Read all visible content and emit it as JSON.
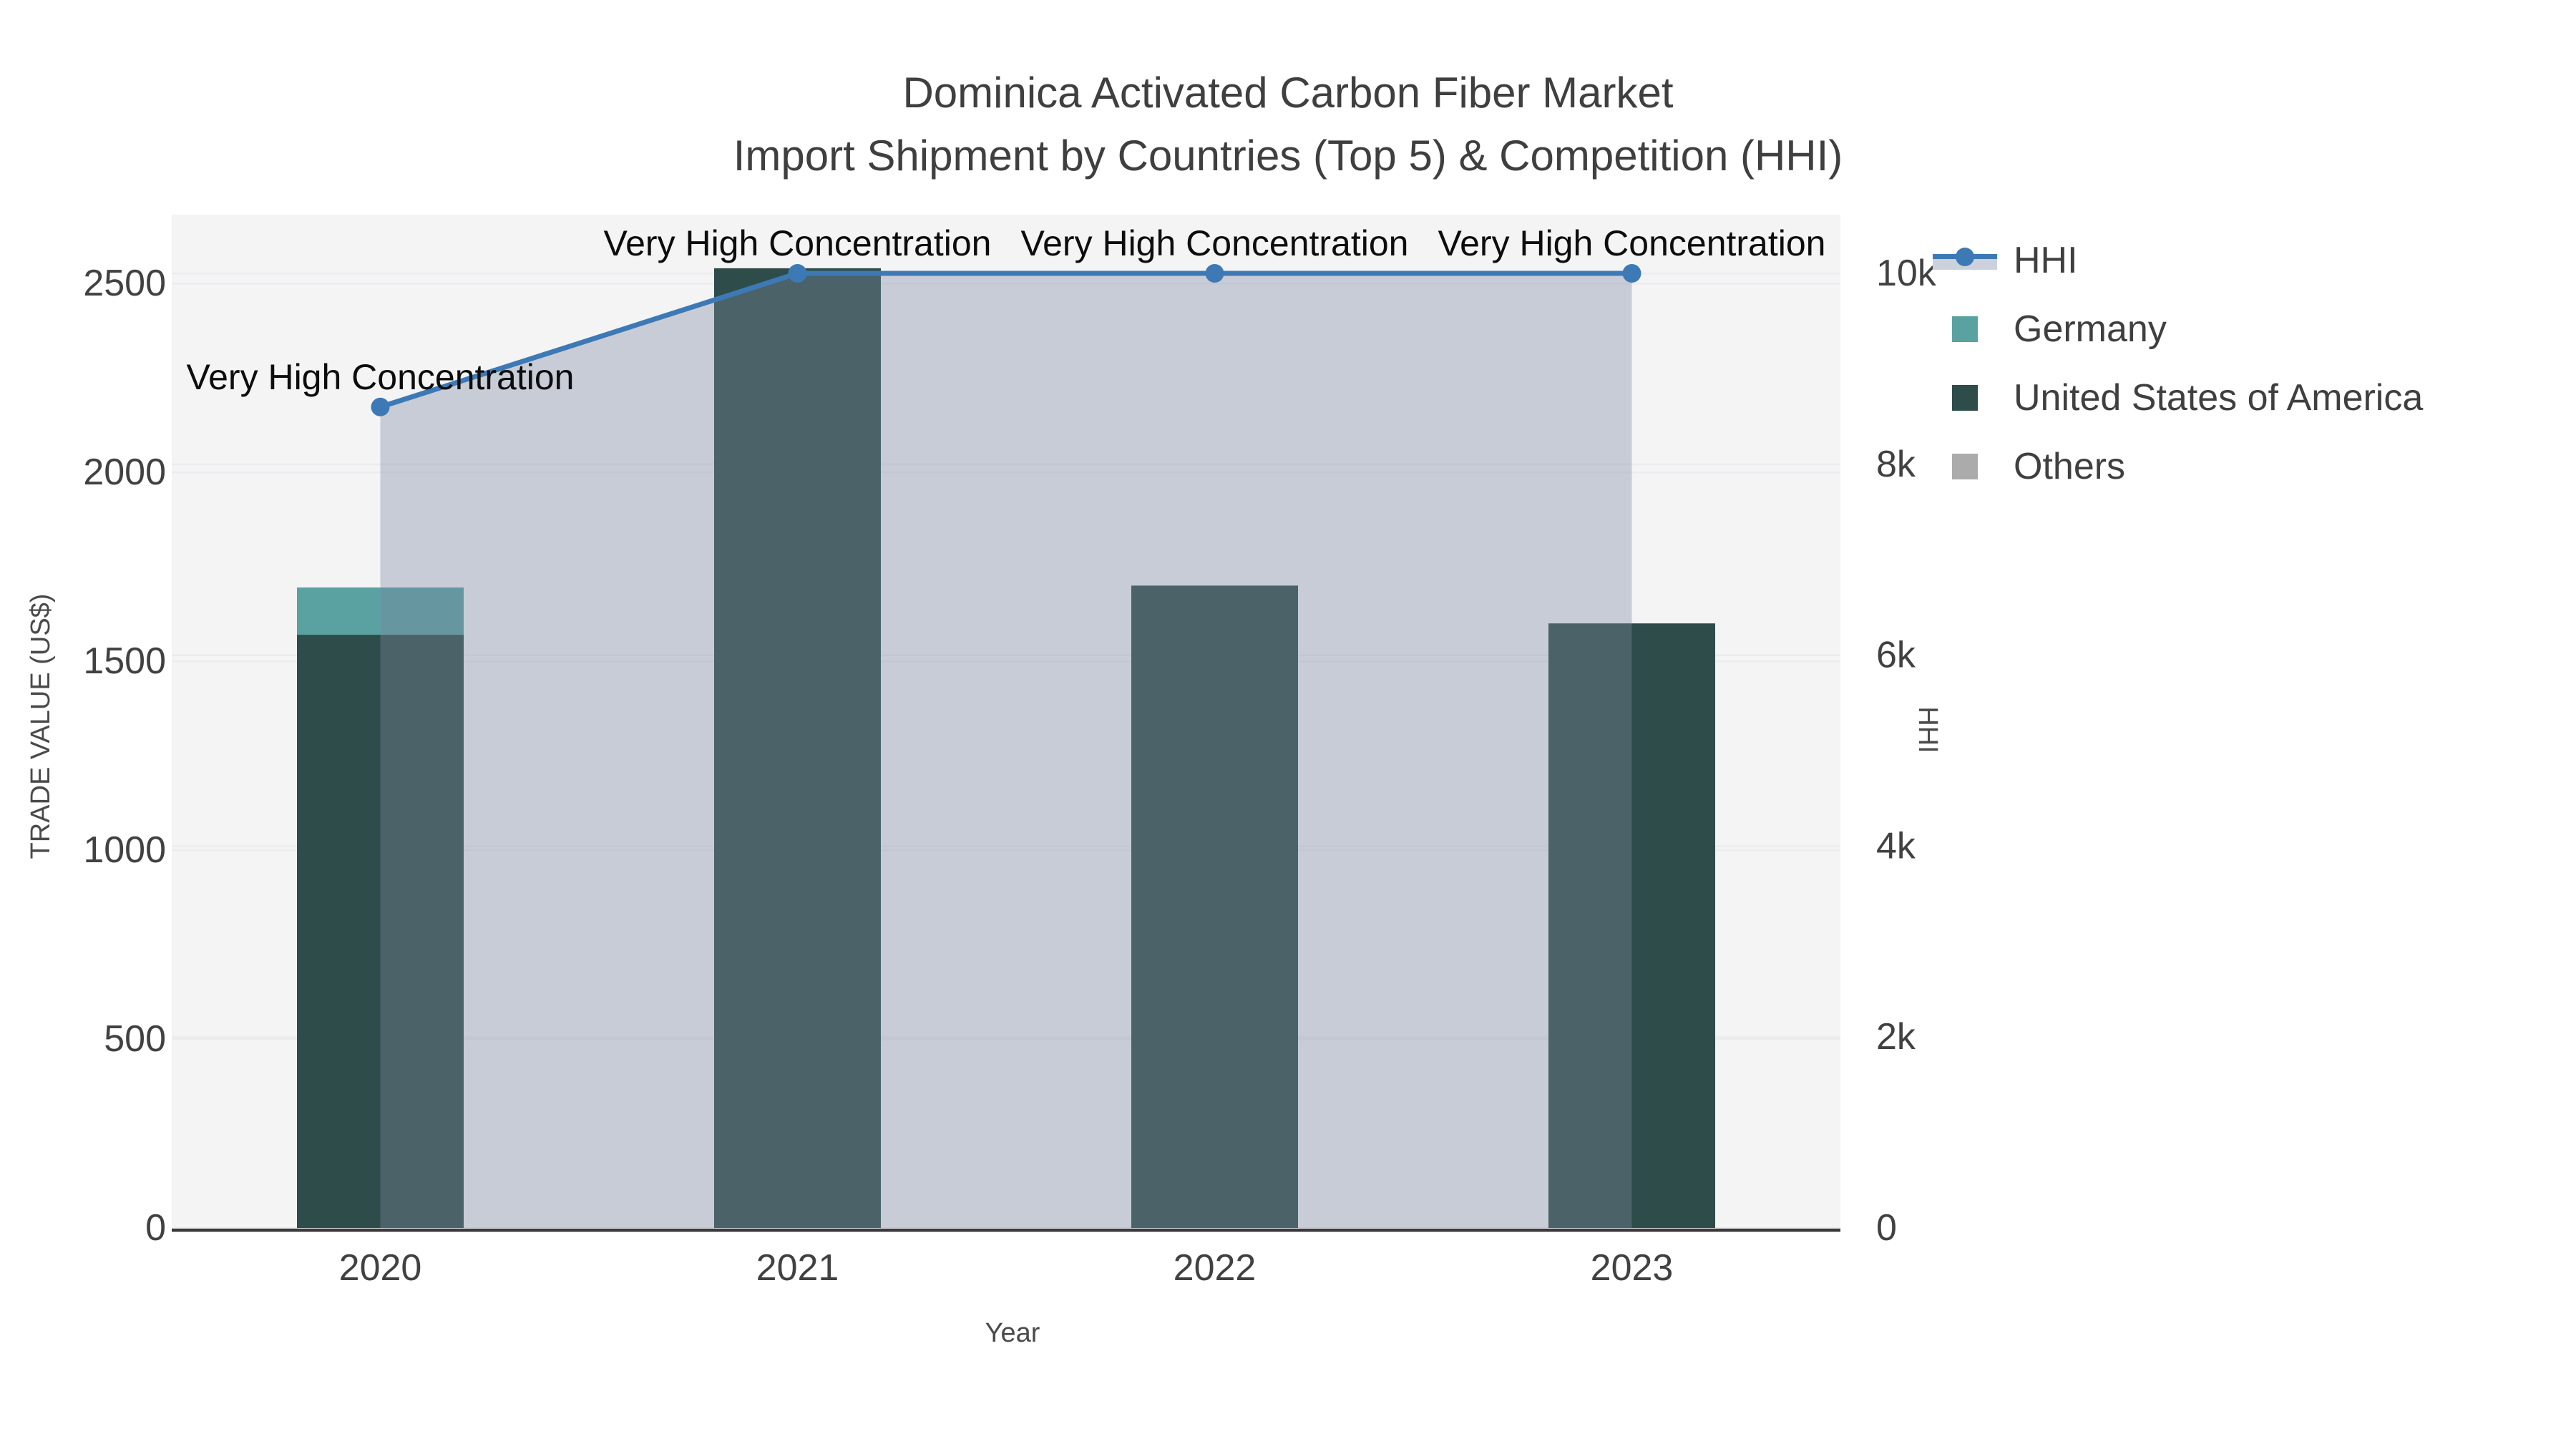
{
  "title": {
    "line1": "Dominica Activated Carbon Fiber Market",
    "line2": "Import Shipment by Countries (Top 5) & Competition (HHI)"
  },
  "chart_data": {
    "type": "bar",
    "subtype": "stacked bars (left axis) + HHI line with shaded area (right axis)",
    "categories": [
      "2020",
      "2021",
      "2022",
      "2023"
    ],
    "series": [
      {
        "name": "United States of America",
        "axis": "left",
        "color": "#2E4C49",
        "values": [
          1570,
          2540,
          1700,
          1600
        ]
      },
      {
        "name": "Germany",
        "axis": "left",
        "color": "#5AA1A1",
        "values": [
          125,
          0,
          0,
          0
        ]
      },
      {
        "name": "Others",
        "axis": "left",
        "color": "#ABABAB",
        "values": [
          0,
          0,
          0,
          0
        ]
      }
    ],
    "line_series": {
      "name": "HHI",
      "axis": "right",
      "color": "#3D7AB5",
      "area_fill_color": "rgba(125,135,160,0.37)",
      "values": [
        8600,
        10000,
        10000,
        10000
      ]
    },
    "annotations": [
      {
        "text": "Very High Concentration",
        "x": "2020",
        "y": 8600
      },
      {
        "text": "Very High Concentration",
        "x": "2021",
        "y": 10000
      },
      {
        "text": "Very High Concentration",
        "x": "2022",
        "y": 10000
      },
      {
        "text": "Very High Concentration",
        "x": "2023",
        "y": 10000
      }
    ],
    "xlabel": "Year",
    "left_axis": {
      "title": "TRADE VALUE (US$)",
      "ticks": [
        "0",
        "500",
        "1000",
        "1500",
        "2000",
        "2500"
      ],
      "tick_values": [
        0,
        500,
        1000,
        1500,
        2000,
        2500
      ],
      "range": [
        0,
        2500
      ]
    },
    "right_axis": {
      "title": "HHI",
      "ticks": [
        "0",
        "2k",
        "4k",
        "6k",
        "8k",
        "10k"
      ],
      "tick_values": [
        0,
        2000,
        4000,
        6000,
        8000,
        10000
      ],
      "range": [
        0,
        10000
      ]
    },
    "grid": true,
    "legend_position": "right"
  },
  "legend": {
    "items": [
      {
        "label": "HHI",
        "swatch": "line-marker-band",
        "color": "#3D7AB5",
        "band_color": "#CCD1DC"
      },
      {
        "label": "Germany",
        "swatch": "square",
        "color": "#5AA1A1"
      },
      {
        "label": "United States of America",
        "swatch": "square",
        "color": "#2E4C49"
      },
      {
        "label": "Others",
        "swatch": "square",
        "color": "#ABABAB"
      }
    ]
  },
  "colors": {
    "plot_bg": "#F4F4F5",
    "grid": "#EBECEE",
    "axis_line": "#3A3A3A",
    "tick_text": "#414141",
    "axis_title_text": "#4A4A4A",
    "title_text": "#3F3F3F",
    "annotation_text": "#0D0D0D",
    "legend_text": "#3F3F3F"
  }
}
